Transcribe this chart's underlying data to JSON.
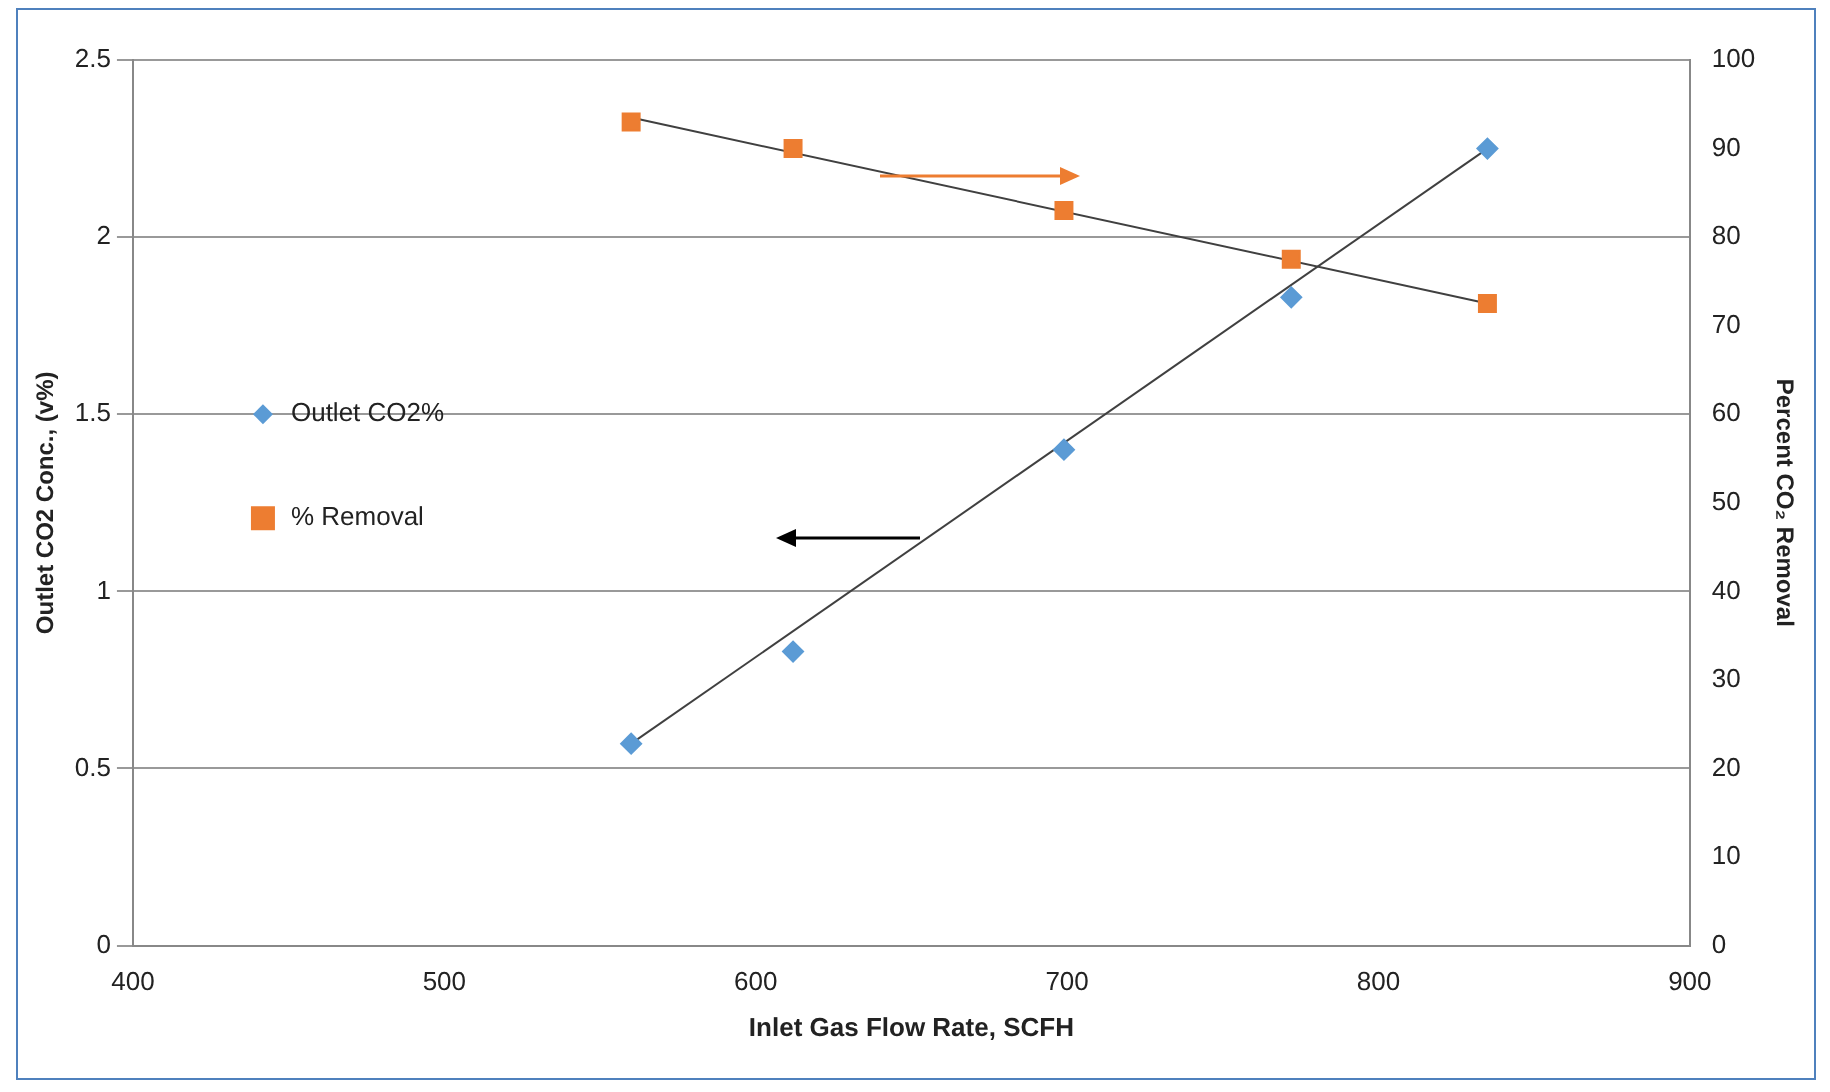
{
  "chart_data": {
    "type": "scatter",
    "xlabel": "Inlet Gas Flow Rate, SCFH",
    "ylabel": "Outlet CO2 Conc., (v%)",
    "y2label": "Percent CO₂ Removal",
    "xlim": [
      400,
      900
    ],
    "xticks": [
      400,
      500,
      600,
      700,
      800,
      900
    ],
    "ylim": [
      0,
      2.5
    ],
    "yticks": [
      0,
      0.5,
      1,
      1.5,
      2,
      2.5
    ],
    "y2lim": [
      0,
      100
    ],
    "y2ticks": [
      0,
      10,
      20,
      30,
      40,
      50,
      60,
      70,
      80,
      90,
      100
    ],
    "grid": "y",
    "legend": "left",
    "series": [
      {
        "name": "Outlet CO2%",
        "marker": "diamond",
        "color": "#5b9bd5",
        "x": [
          560,
          612,
          699,
          772,
          835
        ],
        "values": [
          0.57,
          0.83,
          1.4,
          1.83,
          2.25
        ]
      },
      {
        "name": "% Removal",
        "marker": "square",
        "color": "#ed7d31",
        "axis": "y2",
        "x": [
          560,
          612,
          699,
          772,
          835
        ],
        "values": [
          93,
          90,
          83,
          77.5,
          72.5
        ]
      },
      {
        "type": "line",
        "color": "#404040",
        "x": [
          560,
          835
        ],
        "values": [
          0.57,
          2.25
        ]
      },
      {
        "type": "line",
        "color": "#404040",
        "axis": "y2",
        "x": [
          560,
          835
        ],
        "values": [
          93.5,
          72.5
        ]
      }
    ]
  }
}
